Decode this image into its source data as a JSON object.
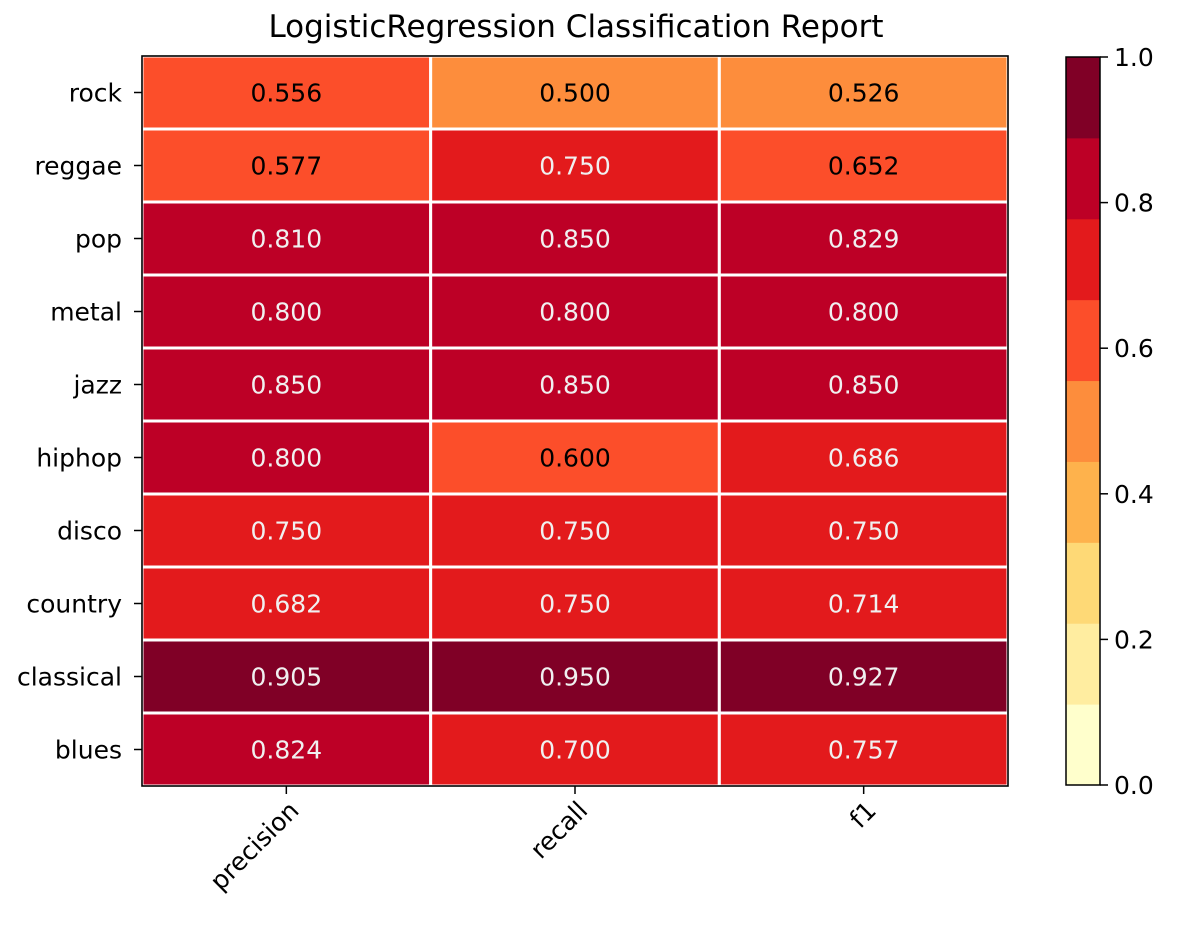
{
  "chart_data": {
    "type": "heatmap",
    "title": "LogisticRegression Classification Report",
    "xlabel": "",
    "ylabel": "",
    "columns": [
      "precision",
      "recall",
      "f1"
    ],
    "rows": [
      "rock",
      "reggae",
      "pop",
      "metal",
      "jazz",
      "hiphop",
      "disco",
      "country",
      "classical",
      "blues"
    ],
    "values": [
      [
        0.556,
        0.5,
        0.526
      ],
      [
        0.577,
        0.75,
        0.652
      ],
      [
        0.81,
        0.85,
        0.829
      ],
      [
        0.8,
        0.8,
        0.8
      ],
      [
        0.85,
        0.85,
        0.85
      ],
      [
        0.8,
        0.6,
        0.686
      ],
      [
        0.75,
        0.75,
        0.75
      ],
      [
        0.682,
        0.75,
        0.714
      ],
      [
        0.905,
        0.95,
        0.927
      ],
      [
        0.824,
        0.7,
        0.757
      ]
    ],
    "labels": [
      [
        "0.556",
        "0.500",
        "0.526"
      ],
      [
        "0.577",
        "0.750",
        "0.652"
      ],
      [
        "0.810",
        "0.850",
        "0.829"
      ],
      [
        "0.800",
        "0.800",
        "0.800"
      ],
      [
        "0.850",
        "0.850",
        "0.850"
      ],
      [
        "0.800",
        "0.600",
        "0.686"
      ],
      [
        "0.750",
        "0.750",
        "0.750"
      ],
      [
        "0.682",
        "0.750",
        "0.714"
      ],
      [
        "0.905",
        "0.950",
        "0.927"
      ],
      [
        "0.824",
        "0.700",
        "0.757"
      ]
    ],
    "colorbar": {
      "range": [
        0,
        1
      ],
      "ticks": [
        "0.0",
        "0.2",
        "0.4",
        "0.6",
        "0.8",
        "1.0"
      ],
      "colors": [
        "#ffffcc",
        "#ffeda0",
        "#fed976",
        "#feb24c",
        "#fd8d3c",
        "#fc4e2a",
        "#e31a1c",
        "#bd0026",
        "#800026"
      ]
    },
    "colormap": "YlOrRd (9 discrete bins)",
    "grid": false,
    "legend": "none"
  }
}
